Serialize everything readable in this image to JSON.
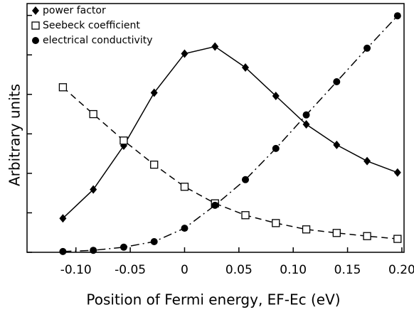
{
  "chart_data": {
    "type": "line",
    "xlabel": "Position of Fermi energy, EF-Ec (eV)",
    "ylabel": "Arbitrary units",
    "x": [
      -0.112,
      -0.084,
      -0.056,
      -0.028,
      0,
      0.028,
      0.056,
      0.084,
      0.112,
      0.14,
      0.168,
      0.196
    ],
    "series": [
      {
        "name": "power factor",
        "color": "#000000",
        "marker": "diamond",
        "dash": "solid",
        "values": [
          0.86,
          1.59,
          2.7,
          4.04,
          5.03,
          5.21,
          4.68,
          3.96,
          3.24,
          2.72,
          2.31,
          2.02
        ]
      },
      {
        "name": "Seebeck coefficient",
        "color": "#000000",
        "marker": "square",
        "dash": "dashed",
        "values": [
          4.18,
          3.5,
          2.83,
          2.22,
          1.66,
          1.24,
          0.94,
          0.74,
          0.58,
          0.49,
          0.41,
          0.34
        ]
      },
      {
        "name": "electrical conductivity",
        "color": "#000000",
        "marker": "circle",
        "dash": "dashdot",
        "values": [
          0.02,
          0.05,
          0.13,
          0.27,
          0.61,
          1.19,
          1.84,
          2.63,
          3.48,
          4.32,
          5.17,
          5.99
        ]
      }
    ],
    "xlim": [
      -0.145,
      0.202
    ],
    "xticks": [
      {
        "value": -0.1,
        "label": "-0.10"
      },
      -0.05,
      0,
      0.05,
      {
        "value": 0.1,
        "label": "0.10"
      },
      0.15,
      {
        "value": 0.2,
        "label": "0.20"
      }
    ],
    "ylim": [
      0,
      6.3
    ],
    "yticks": [
      0,
      1,
      2,
      3,
      4,
      5,
      6
    ],
    "legend": "upper left"
  }
}
